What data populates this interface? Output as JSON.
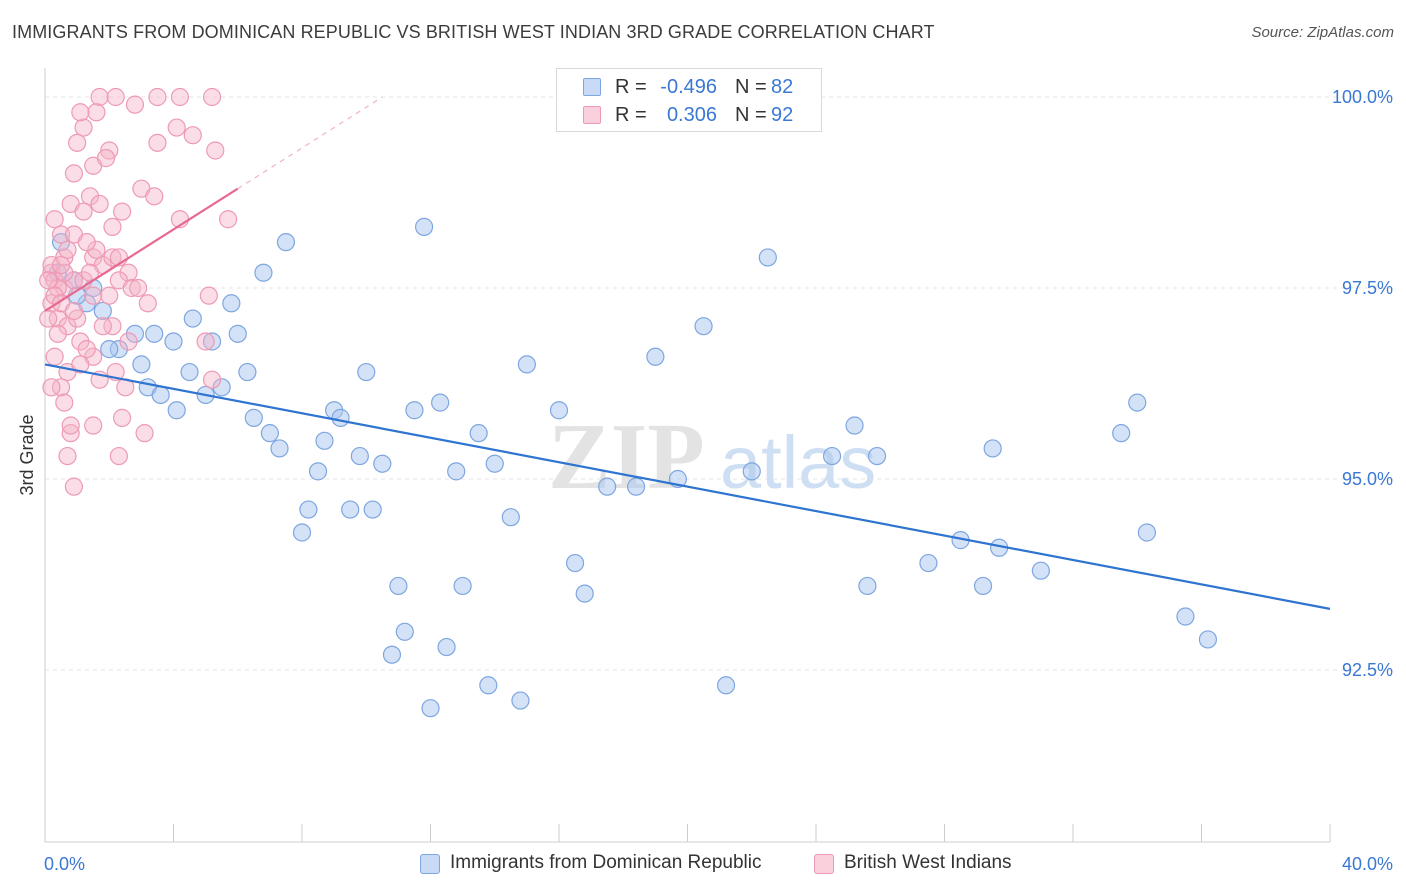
{
  "chart_data": {
    "type": "scatter",
    "title": "IMMIGRANTS FROM DOMINICAN REPUBLIC VS BRITISH WEST INDIAN 3RD GRADE CORRELATION CHART",
    "source": "Source: ZipAtlas.com",
    "ylabel": "3rd Grade",
    "xlabel": "",
    "xlim": [
      0,
      40
    ],
    "ylim": [
      90.0,
      100.2
    ],
    "x_tick_labels": [
      "0.0%",
      "40.0%"
    ],
    "y_ticks": [
      100.0,
      97.5,
      95.0,
      92.5
    ],
    "y_tick_labels": [
      "100.0%",
      "97.5%",
      "95.0%",
      "92.5%"
    ],
    "watermark": [
      "ZIP",
      "atlas"
    ],
    "series": [
      {
        "name": "Immigrants from Dominican Republic",
        "color": "#a9c6f0",
        "line_color": "#2e74d0",
        "r_label": "R =",
        "r_value": "-0.496",
        "n_label": "N =",
        "n_value": "82",
        "trend": {
          "x": [
            0,
            40
          ],
          "y": [
            96.5,
            93.3
          ]
        },
        "points": [
          [
            0.5,
            98.1
          ],
          [
            0.4,
            97.7
          ],
          [
            0.9,
            97.6
          ],
          [
            1.5,
            97.5
          ],
          [
            1.3,
            97.3
          ],
          [
            1.8,
            97.2
          ],
          [
            2.3,
            96.7
          ],
          [
            2.8,
            96.9
          ],
          [
            3.0,
            96.5
          ],
          [
            3.2,
            96.2
          ],
          [
            3.6,
            96.1
          ],
          [
            4.0,
            96.8
          ],
          [
            4.5,
            96.4
          ],
          [
            4.1,
            95.9
          ],
          [
            4.6,
            97.1
          ],
          [
            5.0,
            96.1
          ],
          [
            5.2,
            96.8
          ],
          [
            5.8,
            97.3
          ],
          [
            6.0,
            96.9
          ],
          [
            6.3,
            96.4
          ],
          [
            6.5,
            95.8
          ],
          [
            6.8,
            97.7
          ],
          [
            7.0,
            95.6
          ],
          [
            7.5,
            98.1
          ],
          [
            7.3,
            95.4
          ],
          [
            8.0,
            94.3
          ],
          [
            8.2,
            94.6
          ],
          [
            8.5,
            95.1
          ],
          [
            8.7,
            95.5
          ],
          [
            9.0,
            95.9
          ],
          [
            9.2,
            95.8
          ],
          [
            9.5,
            94.6
          ],
          [
            9.8,
            95.3
          ],
          [
            10.0,
            96.4
          ],
          [
            10.2,
            94.6
          ],
          [
            10.5,
            95.2
          ],
          [
            11.0,
            93.6
          ],
          [
            11.2,
            93.0
          ],
          [
            10.8,
            92.7
          ],
          [
            11.5,
            95.9
          ],
          [
            11.8,
            98.3
          ],
          [
            12.0,
            92.0
          ],
          [
            12.5,
            92.8
          ],
          [
            12.3,
            96.0
          ],
          [
            12.8,
            95.1
          ],
          [
            13.0,
            93.6
          ],
          [
            13.5,
            95.6
          ],
          [
            13.8,
            92.3
          ],
          [
            14.0,
            95.2
          ],
          [
            14.5,
            94.5
          ],
          [
            14.8,
            92.1
          ],
          [
            15.0,
            96.5
          ],
          [
            16.0,
            95.9
          ],
          [
            16.5,
            93.9
          ],
          [
            16.8,
            93.5
          ],
          [
            17.5,
            94.9
          ],
          [
            18.4,
            94.9
          ],
          [
            19.0,
            96.6
          ],
          [
            19.7,
            95.0
          ],
          [
            20.5,
            97.0
          ],
          [
            21.2,
            92.3
          ],
          [
            22.0,
            95.1
          ],
          [
            22.5,
            97.9
          ],
          [
            24.5,
            95.3
          ],
          [
            25.2,
            95.7
          ],
          [
            25.6,
            93.6
          ],
          [
            25.9,
            95.3
          ],
          [
            27.5,
            93.9
          ],
          [
            28.5,
            94.2
          ],
          [
            29.2,
            93.6
          ],
          [
            29.5,
            95.4
          ],
          [
            29.7,
            94.1
          ],
          [
            31.0,
            93.8
          ],
          [
            33.5,
            95.6
          ],
          [
            34.0,
            96.0
          ],
          [
            34.3,
            94.3
          ],
          [
            35.5,
            93.2
          ],
          [
            36.2,
            92.9
          ],
          [
            1.0,
            97.4
          ],
          [
            2.0,
            96.7
          ],
          [
            3.4,
            96.9
          ],
          [
            5.5,
            96.2
          ]
        ]
      },
      {
        "name": "British West Indians",
        "color": "#f5b3c8",
        "line_color": "#e8698f",
        "r_label": "R =",
        "r_value": "0.306",
        "n_label": "N =",
        "n_value": "92",
        "trend": {
          "x": [
            0,
            6.0
          ],
          "y": [
            97.2,
            98.8
          ]
        },
        "trend_ext": {
          "x": [
            6.0,
            10.5
          ],
          "y": [
            98.8,
            100.0
          ]
        },
        "points": [
          [
            1.7,
            100.0
          ],
          [
            2.2,
            100.0
          ],
          [
            3.5,
            100.0
          ],
          [
            4.2,
            100.0
          ],
          [
            5.2,
            100.0
          ],
          [
            1.6,
            99.8
          ],
          [
            1.2,
            99.6
          ],
          [
            2.0,
            99.3
          ],
          [
            3.5,
            99.4
          ],
          [
            4.1,
            99.6
          ],
          [
            5.3,
            99.3
          ],
          [
            1.0,
            99.4
          ],
          [
            1.5,
            99.1
          ],
          [
            0.9,
            99.0
          ],
          [
            1.4,
            98.7
          ],
          [
            3.0,
            98.8
          ],
          [
            0.8,
            98.6
          ],
          [
            1.2,
            98.5
          ],
          [
            1.7,
            98.6
          ],
          [
            2.1,
            98.3
          ],
          [
            4.2,
            98.4
          ],
          [
            5.7,
            98.4
          ],
          [
            0.5,
            98.2
          ],
          [
            0.9,
            98.2
          ],
          [
            1.5,
            97.9
          ],
          [
            1.8,
            97.8
          ],
          [
            2.1,
            97.9
          ],
          [
            2.6,
            97.7
          ],
          [
            0.2,
            97.7
          ],
          [
            0.3,
            97.6
          ],
          [
            0.6,
            97.5
          ],
          [
            0.9,
            97.6
          ],
          [
            1.2,
            97.6
          ],
          [
            1.5,
            97.4
          ],
          [
            2.3,
            97.6
          ],
          [
            2.7,
            97.5
          ],
          [
            3.2,
            97.3
          ],
          [
            5.1,
            97.4
          ],
          [
            0.2,
            97.3
          ],
          [
            0.4,
            97.1
          ],
          [
            0.7,
            97.0
          ],
          [
            1.1,
            96.8
          ],
          [
            1.5,
            96.6
          ],
          [
            2.1,
            97.0
          ],
          [
            0.3,
            96.6
          ],
          [
            0.7,
            96.4
          ],
          [
            1.3,
            96.7
          ],
          [
            0.5,
            96.2
          ],
          [
            0.6,
            96.0
          ],
          [
            2.5,
            96.2
          ],
          [
            2.4,
            95.8
          ],
          [
            1.5,
            95.7
          ],
          [
            0.8,
            95.6
          ],
          [
            0.7,
            95.3
          ],
          [
            2.3,
            95.3
          ],
          [
            0.9,
            94.9
          ],
          [
            0.2,
            97.8
          ],
          [
            0.4,
            97.5
          ],
          [
            0.6,
            97.9
          ],
          [
            1.0,
            97.1
          ],
          [
            1.4,
            97.7
          ],
          [
            2.0,
            97.4
          ],
          [
            2.3,
            97.9
          ],
          [
            0.8,
            95.7
          ],
          [
            3.1,
            95.6
          ],
          [
            5.2,
            96.3
          ],
          [
            5.0,
            96.8
          ],
          [
            0.3,
            97.4
          ],
          [
            0.5,
            97.3
          ],
          [
            0.1,
            97.6
          ],
          [
            1.8,
            97.0
          ],
          [
            2.6,
            96.8
          ],
          [
            0.4,
            96.9
          ],
          [
            1.1,
            96.5
          ],
          [
            0.6,
            97.7
          ],
          [
            0.2,
            96.2
          ],
          [
            1.6,
            98.0
          ],
          [
            2.9,
            97.5
          ],
          [
            0.9,
            97.2
          ],
          [
            1.3,
            98.1
          ],
          [
            0.7,
            98.0
          ],
          [
            1.9,
            99.2
          ],
          [
            2.4,
            98.5
          ],
          [
            0.5,
            97.8
          ],
          [
            3.4,
            98.7
          ],
          [
            4.6,
            99.5
          ],
          [
            2.8,
            99.9
          ],
          [
            1.1,
            99.8
          ],
          [
            0.3,
            98.4
          ],
          [
            0.1,
            97.1
          ],
          [
            2.2,
            96.4
          ],
          [
            1.7,
            96.3
          ]
        ]
      }
    ]
  }
}
